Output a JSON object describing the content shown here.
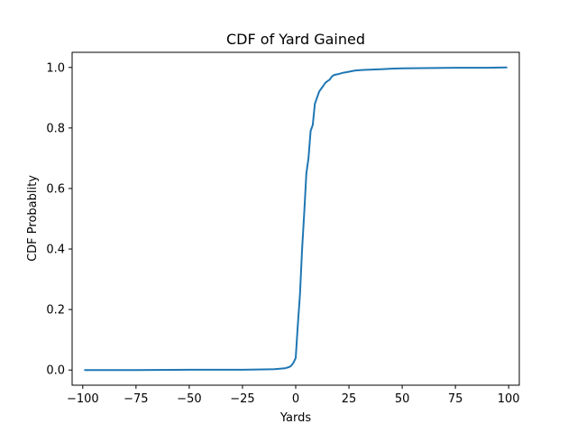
{
  "chart_data": {
    "type": "line",
    "title": "CDF of Yard Gained",
    "xlabel": "Yards",
    "ylabel": "CDF Probablity",
    "xlim": [
      -105,
      105
    ],
    "ylim": [
      -0.05,
      1.05
    ],
    "xticks": [
      -100,
      -75,
      -50,
      -25,
      0,
      25,
      50,
      75,
      100
    ],
    "xtick_labels": [
      "−100",
      "−75",
      "−50",
      "−25",
      "0",
      "25",
      "50",
      "75",
      "100"
    ],
    "yticks": [
      0.0,
      0.2,
      0.4,
      0.6,
      0.8,
      1.0
    ],
    "ytick_labels": [
      "0.0",
      "0.2",
      "0.4",
      "0.6",
      "0.8",
      "1.0"
    ],
    "grid": false,
    "series": [
      {
        "color": "#1f77b4",
        "x": [
          -99,
          -75,
          -50,
          -25,
          -15,
          -10,
          -5,
          -3,
          -2,
          -1,
          0,
          1,
          2,
          3,
          4,
          5,
          6,
          7,
          8,
          9,
          10,
          11,
          12,
          13,
          14,
          15,
          16,
          17,
          18,
          20,
          22,
          25,
          28,
          32,
          40,
          45,
          50,
          60,
          75,
          90,
          99
        ],
        "y": [
          0.0,
          0.0,
          0.001,
          0.001,
          0.002,
          0.003,
          0.006,
          0.01,
          0.015,
          0.025,
          0.04,
          0.15,
          0.25,
          0.4,
          0.52,
          0.65,
          0.7,
          0.79,
          0.81,
          0.88,
          0.9,
          0.92,
          0.93,
          0.94,
          0.95,
          0.955,
          0.96,
          0.97,
          0.975,
          0.978,
          0.982,
          0.986,
          0.99,
          0.992,
          0.994,
          0.996,
          0.997,
          0.998,
          0.999,
          0.999,
          1.0
        ]
      }
    ]
  }
}
